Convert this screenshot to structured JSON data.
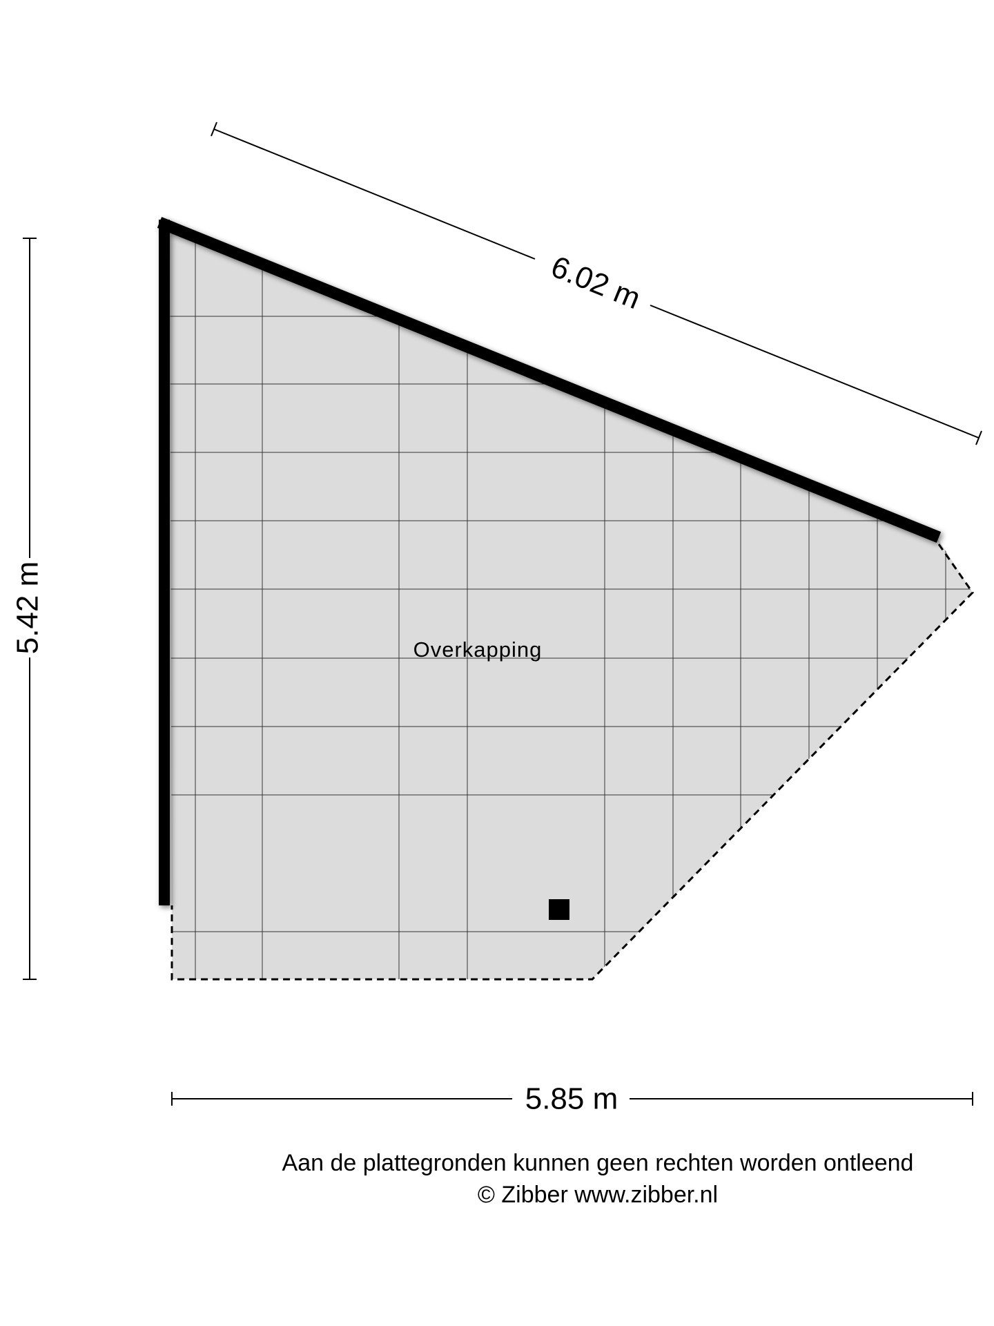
{
  "room": {
    "label": "Overkapping"
  },
  "dimensions": {
    "top": "6.02 m",
    "left": "5.42 m",
    "bottom": "5.85 m"
  },
  "footer": {
    "disclaimer": "Aan de plattegronden kunnen geen rechten worden ontleend",
    "copyright": "© Zibber www.zibber.nl"
  }
}
